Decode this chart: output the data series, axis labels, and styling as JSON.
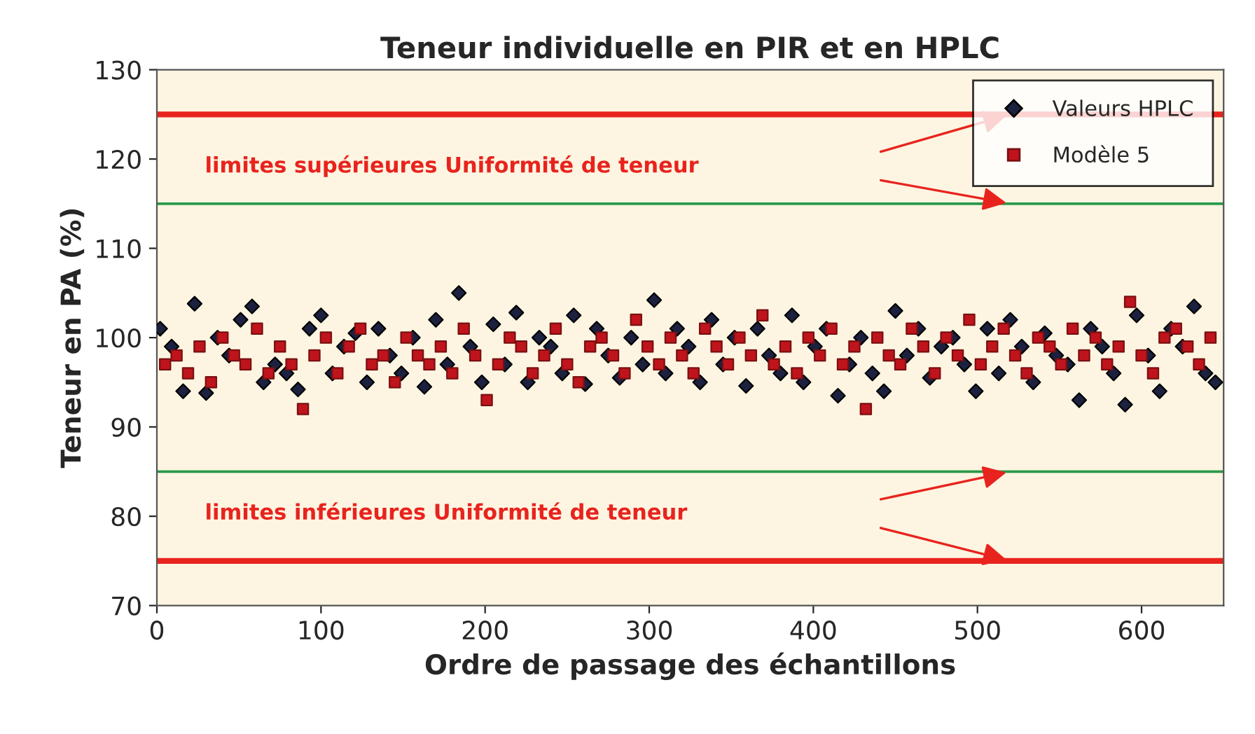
{
  "chart_data": {
    "type": "scatter",
    "title": "Teneur individuelle en PIR et en HPLC",
    "xlabel": "Ordre de passage des échantillons",
    "ylabel": "Teneur en PA (%)",
    "xlim": [
      0,
      650
    ],
    "xticks": [
      0,
      100,
      200,
      300,
      400,
      500,
      600
    ],
    "ylim": [
      70,
      130
    ],
    "yticks": [
      70,
      80,
      90,
      100,
      110,
      120,
      130
    ],
    "grid": false,
    "legend": "top right",
    "series": [
      {
        "name": "Valeurs HPLC",
        "color": "#1c2140",
        "marker": "diamond",
        "x": [
          2,
          9,
          16,
          23,
          30,
          37,
          44,
          51,
          58,
          65,
          72,
          79,
          86,
          93,
          100,
          107,
          114,
          121,
          128,
          135,
          142,
          149,
          156,
          163,
          170,
          177,
          184,
          191,
          198,
          205,
          212,
          219,
          226,
          233,
          240,
          247,
          254,
          261,
          268,
          275,
          282,
          289,
          296,
          303,
          310,
          317,
          324,
          331,
          338,
          345,
          352,
          359,
          366,
          373,
          380,
          387,
          394,
          401,
          408,
          415,
          422,
          429,
          436,
          443,
          450,
          457,
          464,
          471,
          478,
          485,
          492,
          499,
          506,
          513,
          520,
          527,
          534,
          541,
          548,
          555,
          562,
          569,
          576,
          583,
          590,
          597,
          604,
          611,
          618,
          625,
          632,
          639,
          645
        ],
        "values": [
          101,
          99,
          94,
          103.8,
          93.8,
          100,
          98,
          102,
          103.5,
          95,
          97,
          96,
          94.2,
          101,
          102.5,
          96,
          99,
          100.5,
          95,
          101,
          98,
          96,
          100,
          94.5,
          102,
          97,
          105,
          99,
          95,
          101.5,
          97,
          102.8,
          95,
          100,
          99,
          96,
          102.5,
          94.8,
          101,
          98,
          95.5,
          100,
          97,
          104.2,
          96,
          101,
          99,
          95,
          102,
          97,
          100,
          94.6,
          101,
          98,
          96,
          102.5,
          95,
          99,
          101,
          93.5,
          97,
          100,
          96,
          94,
          103,
          98,
          101,
          95.5,
          99,
          100,
          97,
          94,
          101,
          96,
          102,
          99,
          95,
          100.5,
          98,
          97,
          93,
          101,
          99,
          96,
          92.5,
          102.5,
          98,
          94,
          101,
          99,
          103.5,
          96,
          95
        ]
      },
      {
        "name": "Modèle 5",
        "color": "#c0141c",
        "marker": "square",
        "x": [
          5,
          12,
          19,
          26,
          33,
          40,
          47,
          54,
          61,
          68,
          75,
          82,
          89,
          96,
          103,
          110,
          117,
          124,
          131,
          138,
          145,
          152,
          159,
          166,
          173,
          180,
          187,
          194,
          201,
          208,
          215,
          222,
          229,
          236,
          243,
          250,
          257,
          264,
          271,
          278,
          285,
          292,
          299,
          306,
          313,
          320,
          327,
          334,
          341,
          348,
          355,
          362,
          369,
          376,
          383,
          390,
          397,
          404,
          411,
          418,
          425,
          432,
          439,
          446,
          453,
          460,
          467,
          474,
          481,
          488,
          495,
          502,
          509,
          516,
          523,
          530,
          537,
          544,
          551,
          558,
          565,
          572,
          579,
          586,
          593,
          600,
          607,
          614,
          621,
          628,
          635,
          642
        ],
        "values": [
          97,
          98,
          96,
          99,
          95,
          100,
          98,
          97,
          101,
          96,
          99,
          97,
          92,
          98,
          100,
          96,
          99,
          101,
          97,
          98,
          95,
          100,
          98,
          97,
          99,
          96,
          101,
          98,
          93,
          97,
          100,
          99,
          96,
          98,
          101,
          97,
          95,
          99,
          100,
          98,
          96,
          102,
          99,
          97,
          100,
          98,
          96,
          101,
          99,
          97,
          100,
          98,
          102.5,
          97,
          99,
          96,
          100,
          98,
          101,
          97,
          99,
          92,
          100,
          98,
          97,
          101,
          99,
          96,
          100,
          98,
          102,
          97,
          99,
          101,
          98,
          96,
          100,
          99,
          97,
          101,
          98,
          100,
          97,
          99,
          104,
          98,
          96,
          100,
          101,
          99,
          97,
          100
        ]
      }
    ],
    "ref_lines": [
      {
        "axis": "y",
        "value": 125,
        "color": "#e8231e"
      },
      {
        "axis": "y",
        "value": 115,
        "color": "#2a9a4a"
      },
      {
        "axis": "y",
        "value": 85,
        "color": "#2a9a4a"
      },
      {
        "axis": "y",
        "value": 75,
        "color": "#e8231e"
      }
    ],
    "annotations": [
      "limites supérieures Uniformité de teneur",
      "limites inférieures Uniformité de teneur"
    ]
  }
}
